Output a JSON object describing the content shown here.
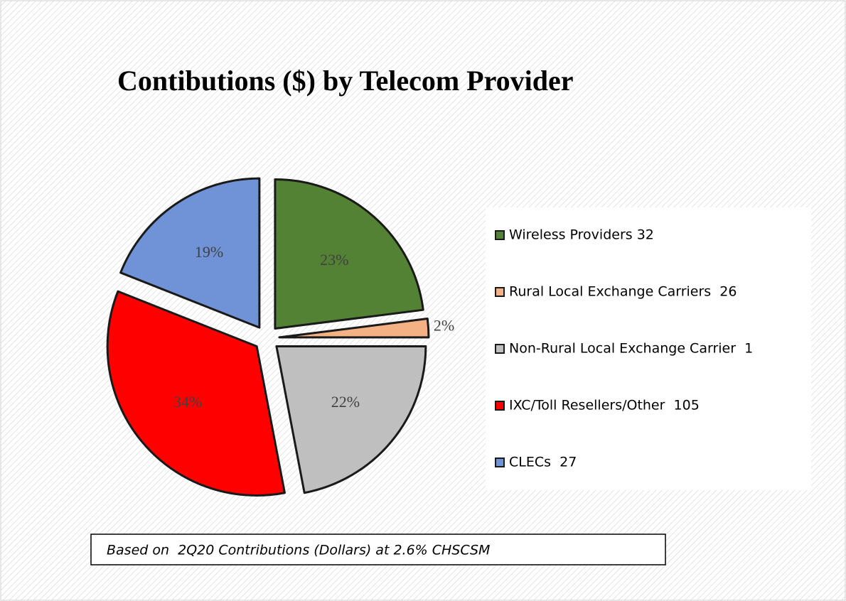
{
  "chart_data": {
    "type": "pie",
    "title": "Contibutions ($) by Telecom Provider",
    "categories": [
      "Wireless Providers 32",
      "Rural Local Exchange Carriers  26",
      "Non-Rural Local Exchange Carrier  1",
      "IXC/Toll Resellers/Other  105",
      "CLECs  27"
    ],
    "values": [
      23,
      2,
      22,
      34,
      19
    ],
    "value_labels": [
      "23%",
      "2%",
      "22%",
      "34%",
      "19%"
    ],
    "colors": [
      "#548235",
      "#f4b183",
      "#bfbfbf",
      "#ff0000",
      "#6f93d6"
    ],
    "annotation": "Based on  2Q20 Contributions (Dollars) at 2.6% CHSCSM"
  }
}
